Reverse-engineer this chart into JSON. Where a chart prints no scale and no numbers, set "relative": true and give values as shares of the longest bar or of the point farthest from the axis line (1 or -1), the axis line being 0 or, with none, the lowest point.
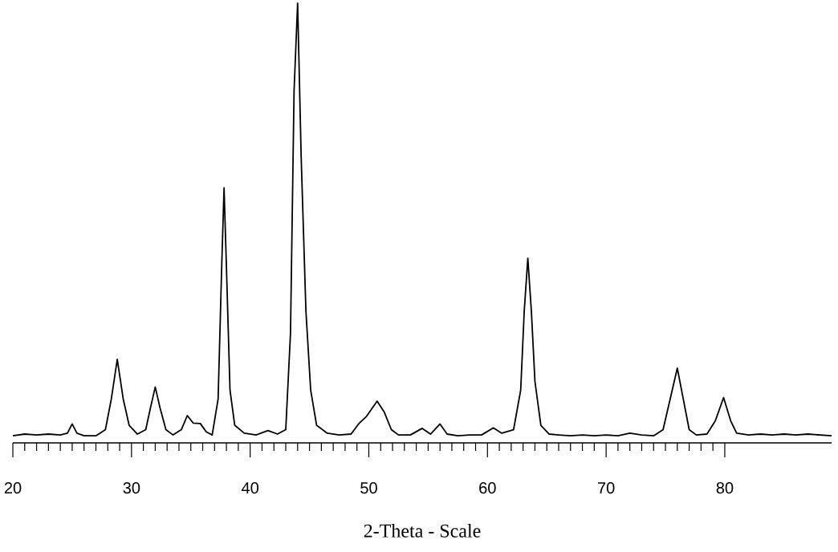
{
  "chart_data": {
    "type": "line",
    "relative": true,
    "xlabel": "2-Theta - Scale",
    "xlim": [
      20,
      89
    ],
    "xticks": [
      20,
      30,
      40,
      50,
      60,
      70,
      80
    ],
    "color": "#000000",
    "x": [
      20,
      21,
      22,
      23,
      24,
      24.6,
      25.0,
      25.4,
      26,
      27,
      27.8,
      28.3,
      28.8,
      29.3,
      29.8,
      30.5,
      31.2,
      31.6,
      32.0,
      32.4,
      32.9,
      33.5,
      34.2,
      34.7,
      35.2,
      35.8,
      36.3,
      36.8,
      37.3,
      37.6,
      37.8,
      38.0,
      38.3,
      38.7,
      39.5,
      40.5,
      41.5,
      42.3,
      43.0,
      43.4,
      43.7,
      44.0,
      44.3,
      44.7,
      45.1,
      45.6,
      46.5,
      47.5,
      48.5,
      49.2,
      49.8,
      50.7,
      51.3,
      51.9,
      52.5,
      53.5,
      54.5,
      55.2,
      56.0,
      56.6,
      57.5,
      58.5,
      59.5,
      60.5,
      61.2,
      62.2,
      62.8,
      63.1,
      63.4,
      63.7,
      64.0,
      64.5,
      65.2,
      66,
      67,
      68,
      69,
      70,
      71,
      72,
      73,
      74,
      74.8,
      75.4,
      76.0,
      76.5,
      77.0,
      77.6,
      78.5,
      79.2,
      79.9,
      80.5,
      81.0,
      82,
      83,
      84,
      85,
      86,
      87,
      88,
      89
    ],
    "values": [
      0.016,
      0.02,
      0.018,
      0.02,
      0.018,
      0.022,
      0.043,
      0.022,
      0.016,
      0.016,
      0.03,
      0.1,
      0.19,
      0.1,
      0.04,
      0.02,
      0.03,
      0.08,
      0.127,
      0.08,
      0.03,
      0.018,
      0.03,
      0.062,
      0.045,
      0.044,
      0.025,
      0.018,
      0.1,
      0.4,
      0.58,
      0.4,
      0.12,
      0.04,
      0.022,
      0.018,
      0.028,
      0.02,
      0.03,
      0.25,
      0.8,
      1.0,
      0.65,
      0.3,
      0.12,
      0.04,
      0.022,
      0.018,
      0.02,
      0.045,
      0.06,
      0.095,
      0.07,
      0.03,
      0.018,
      0.018,
      0.033,
      0.02,
      0.043,
      0.02,
      0.016,
      0.018,
      0.018,
      0.034,
      0.022,
      0.03,
      0.12,
      0.3,
      0.42,
      0.3,
      0.14,
      0.04,
      0.02,
      0.018,
      0.016,
      0.018,
      0.016,
      0.018,
      0.016,
      0.022,
      0.018,
      0.016,
      0.03,
      0.1,
      0.17,
      0.1,
      0.03,
      0.018,
      0.02,
      0.05,
      0.103,
      0.05,
      0.022,
      0.018,
      0.02,
      0.018,
      0.02,
      0.018,
      0.02,
      0.018,
      0.016
    ]
  }
}
